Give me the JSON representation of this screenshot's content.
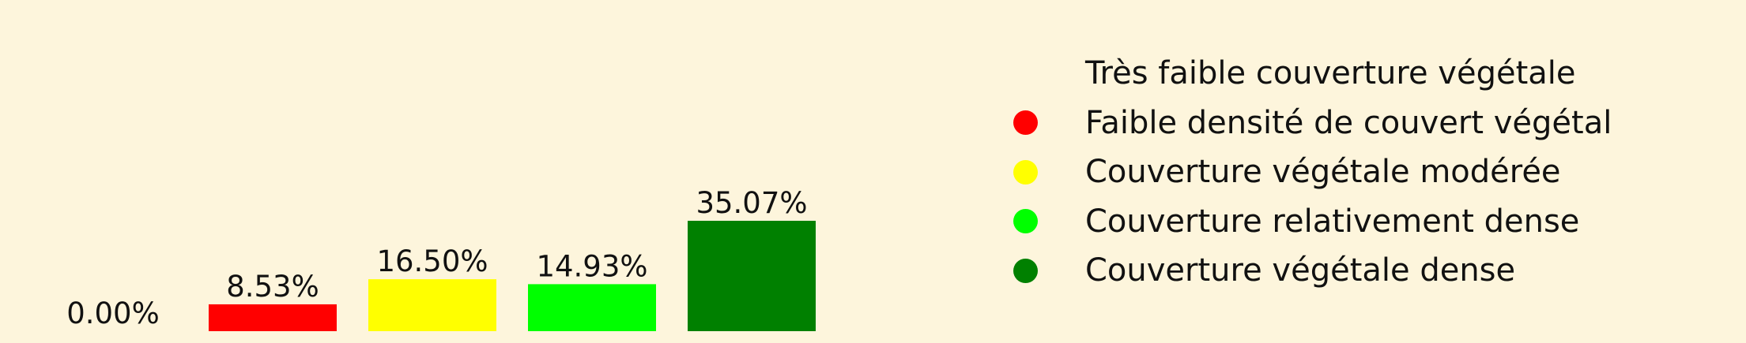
{
  "chart_data": {
    "type": "bar",
    "categories": [
      "Très faible couverture végétale",
      "Faible densité de couvert végétal",
      "Couverture végétale modérée",
      "Couverture relativement dense",
      "Couverture végétale dense"
    ],
    "values": [
      0.0,
      8.53,
      16.5,
      14.93,
      35.07
    ],
    "value_labels": [
      "0.00%",
      "8.53%",
      "16.50%",
      "14.93%",
      "35.07%"
    ],
    "colors": [
      "#fdf5dc",
      "#ff0000",
      "#ffff00",
      "#00ff00",
      "#008000"
    ],
    "legend_position": "right",
    "grid": false
  }
}
